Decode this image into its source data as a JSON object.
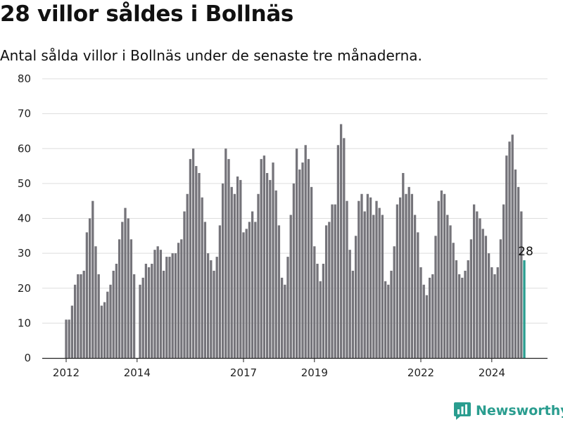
{
  "header": {
    "title": "28 villor såldes i Bollnäs",
    "subtitle": "Antal sålda villor i Bollnäs under de senaste tre månaderna."
  },
  "brand": {
    "name": "Newsworthy",
    "color": "#2a9d8f"
  },
  "chart_data": {
    "type": "bar",
    "title": "28 villor såldes i Bollnäs",
    "subtitle": "Antal sålda villor i Bollnäs under de senaste tre månaderna.",
    "xlabel": "",
    "ylabel": "",
    "ylim": [
      0,
      80
    ],
    "yticks": [
      0,
      10,
      20,
      30,
      40,
      50,
      60,
      70,
      80
    ],
    "xticks": [
      {
        "label": "2012",
        "index": 0
      },
      {
        "label": "2014",
        "index": 24
      },
      {
        "label": "2017",
        "index": 60
      },
      {
        "label": "2019",
        "index": 84
      },
      {
        "label": "2022",
        "index": 120
      },
      {
        "label": "2024",
        "index": 144
      }
    ],
    "grid": true,
    "bar_color": "#75747a",
    "highlight_color": "#2a9d8f",
    "highlight_label": "28",
    "start": "2012-01",
    "frequency": "monthly",
    "values": [
      11,
      11,
      15,
      21,
      24,
      24,
      25,
      36,
      40,
      45,
      32,
      24,
      15,
      16,
      19,
      21,
      25,
      27,
      34,
      39,
      43,
      40,
      34,
      24,
      null,
      21,
      23,
      27,
      26,
      27,
      31,
      32,
      31,
      25,
      29,
      29,
      30,
      30,
      33,
      34,
      42,
      47,
      57,
      60,
      55,
      53,
      46,
      39,
      30,
      28,
      25,
      29,
      38,
      50,
      60,
      57,
      49,
      47,
      52,
      51,
      36,
      37,
      39,
      42,
      39,
      47,
      57,
      58,
      53,
      51,
      56,
      48,
      38,
      23,
      21,
      29,
      41,
      50,
      60,
      54,
      56,
      61,
      57,
      49,
      32,
      27,
      22,
      27,
      38,
      39,
      44,
      44,
      61,
      67,
      63,
      45,
      31,
      25,
      35,
      45,
      47,
      42,
      47,
      46,
      41,
      45,
      43,
      41,
      22,
      21,
      25,
      32,
      44,
      46,
      53,
      47,
      49,
      47,
      41,
      36,
      26,
      21,
      18,
      23,
      24,
      35,
      45,
      48,
      47,
      41,
      38,
      33,
      28,
      24,
      23,
      25,
      28,
      34,
      44,
      42,
      40,
      37,
      35,
      30,
      26,
      24,
      26,
      34,
      44,
      58,
      62,
      64,
      54,
      49,
      42,
      28
    ]
  }
}
